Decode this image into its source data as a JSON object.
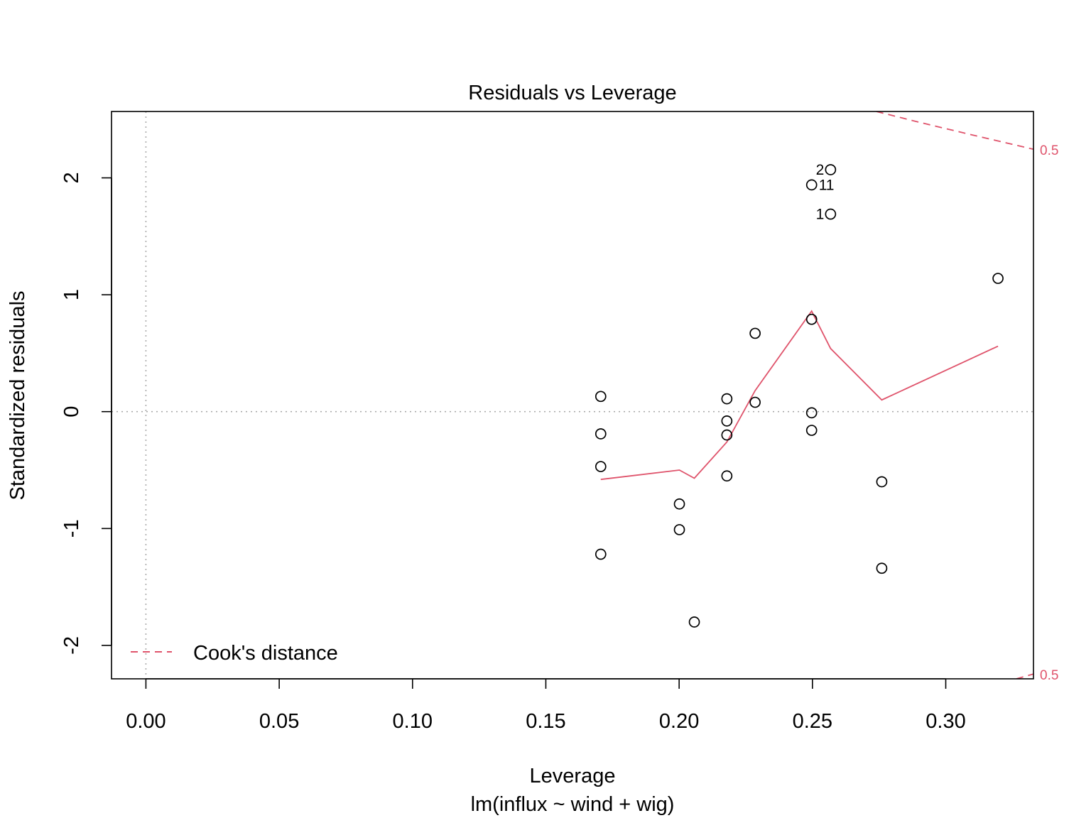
{
  "chart_data": {
    "type": "scatter",
    "title": "Residuals vs Leverage",
    "xlabel": "Leverage",
    "subtitle": "lm(influx ~ wind + wig)",
    "ylabel": "Standardized residuals",
    "xlim": [
      -0.0129,
      0.3329
    ],
    "ylim": [
      -2.286,
      2.568
    ],
    "x_ticks": [
      "0.00",
      "0.05",
      "0.10",
      "0.15",
      "0.20",
      "0.25",
      "0.30"
    ],
    "x_tick_values": [
      0,
      0.05,
      0.1,
      0.15,
      0.2,
      0.25,
      0.3
    ],
    "y_ticks": [
      "-2",
      "-1",
      "0",
      "1",
      "2"
    ],
    "y_tick_values": [
      -2,
      -1,
      0,
      1,
      2
    ],
    "points": [
      {
        "x": 0.2568,
        "y": 1.69,
        "label": "1"
      },
      {
        "x": 0.2568,
        "y": 2.07,
        "label": "2"
      },
      {
        "x": 0.2497,
        "y": 1.94,
        "label": "11"
      },
      {
        "x": 0.1706,
        "y": 0.13
      },
      {
        "x": 0.1706,
        "y": -0.19
      },
      {
        "x": 0.1706,
        "y": -0.47
      },
      {
        "x": 0.1706,
        "y": -1.22
      },
      {
        "x": 0.2001,
        "y": -0.79
      },
      {
        "x": 0.2001,
        "y": -1.01
      },
      {
        "x": 0.2057,
        "y": -1.8
      },
      {
        "x": 0.2179,
        "y": 0.11
      },
      {
        "x": 0.2179,
        "y": -0.08
      },
      {
        "x": 0.2179,
        "y": -0.2
      },
      {
        "x": 0.2179,
        "y": -0.55
      },
      {
        "x": 0.2285,
        "y": 0.08
      },
      {
        "x": 0.2285,
        "y": 0.67
      },
      {
        "x": 0.2497,
        "y": 0.79
      },
      {
        "x": 0.2497,
        "y": -0.01
      },
      {
        "x": 0.2497,
        "y": -0.16
      },
      {
        "x": 0.276,
        "y": -0.6
      },
      {
        "x": 0.276,
        "y": -1.34
      },
      {
        "x": 0.3196,
        "y": 1.14
      }
    ],
    "smoother": {
      "color": "#DF536B",
      "x": [
        0.1706,
        0.2001,
        0.2057,
        0.2179,
        0.2285,
        0.2497,
        0.2568,
        0.276,
        0.3196
      ],
      "y": [
        -0.58,
        -0.5,
        -0.57,
        -0.26,
        0.18,
        0.86,
        0.54,
        0.1,
        0.56
      ]
    },
    "cooks_contours": {
      "color": "#DF536B",
      "levels": [
        "0.5"
      ],
      "upper": {
        "x": [
          0.274,
          0.29,
          0.31,
          0.3329
        ],
        "y": [
          2.568,
          2.476,
          2.367,
          2.245
        ]
      },
      "lower": {
        "x": [
          0.3265,
          0.3329
        ],
        "y": [
          -2.286,
          -2.245
        ]
      }
    },
    "reference_lines": {
      "x": 0,
      "y": 0,
      "color": "#aaaaaa"
    },
    "legend": {
      "entries": [
        "Cook's distance"
      ],
      "position": "bottom-left"
    }
  }
}
